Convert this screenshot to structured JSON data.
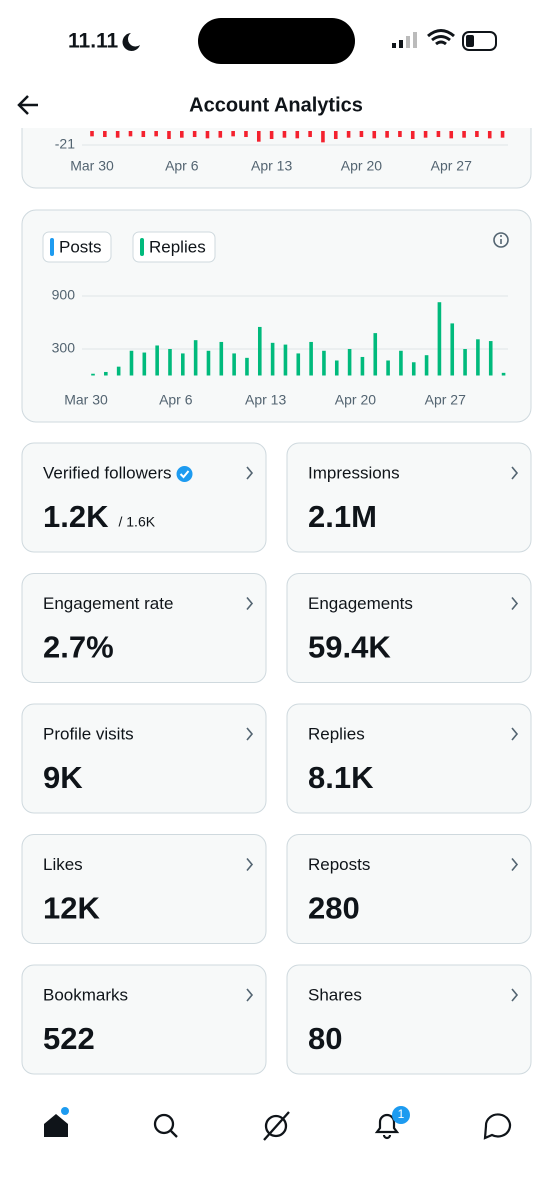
{
  "status": {
    "time": "11.11"
  },
  "header": {
    "title": "Account Analytics"
  },
  "chart_data": [
    {
      "type": "bar",
      "categories": [
        "Mar 30",
        null,
        null,
        null,
        null,
        null,
        null,
        "Apr 6",
        null,
        null,
        null,
        null,
        null,
        null,
        "Apr 13",
        null,
        null,
        null,
        null,
        null,
        null,
        "Apr 20",
        null,
        null,
        null,
        null,
        null,
        null,
        "Apr 27",
        null,
        null,
        null,
        null
      ],
      "series": [
        {
          "color": "#f4212e",
          "values": [
            -8,
            -9,
            -10,
            -8,
            -9,
            -8,
            -12,
            -10,
            -9,
            -11,
            -10,
            -8,
            -9,
            -16,
            -12,
            -10,
            -11,
            -9,
            -17,
            -12,
            -10,
            -9,
            -11,
            -10,
            -9,
            -12,
            -10,
            -9,
            -11,
            -10,
            -9,
            -11,
            -10
          ]
        }
      ],
      "ylim": [
        -28,
        0
      ],
      "yticks": [
        -21
      ],
      "grid": true
    },
    {
      "type": "bar",
      "categories": [
        "Mar 30",
        null,
        null,
        null,
        null,
        null,
        null,
        "Apr 6",
        null,
        null,
        null,
        null,
        null,
        null,
        "Apr 13",
        null,
        null,
        null,
        null,
        null,
        null,
        "Apr 20",
        null,
        null,
        null,
        null,
        null,
        null,
        "Apr 27",
        null,
        null,
        null,
        null
      ],
      "series": [
        {
          "name": "Posts",
          "color": "#1d9bf0",
          "values": [
            0,
            0,
            0,
            0,
            0,
            0,
            0,
            0,
            0,
            0,
            0,
            0,
            0,
            0,
            0,
            0,
            0,
            0,
            0,
            0,
            0,
            0,
            0,
            0,
            0,
            0,
            0,
            0,
            0,
            0,
            0,
            0,
            0
          ]
        },
        {
          "name": "Replies",
          "color": "#00ba7c",
          "values": [
            20,
            40,
            100,
            280,
            260,
            340,
            300,
            250,
            400,
            280,
            380,
            250,
            200,
            550,
            370,
            350,
            250,
            380,
            280,
            170,
            300,
            210,
            480,
            170,
            280,
            150,
            230,
            830,
            590,
            300,
            410,
            390,
            30
          ]
        }
      ],
      "ylim": [
        0,
        1000
      ],
      "yticks": [
        300,
        900
      ],
      "grid": true
    }
  ],
  "metrics": [
    {
      "label": "Verified followers",
      "value": "1.2K",
      "total": "/ 1.6K"
    },
    {
      "label": "Impressions",
      "value": "2.1M"
    },
    {
      "label": "Engagement rate",
      "value": "2.7%"
    },
    {
      "label": "Engagements",
      "value": "59.4K"
    },
    {
      "label": "Profile visits",
      "value": "9K"
    },
    {
      "label": "Replies",
      "value": "8.1K"
    },
    {
      "label": "Likes",
      "value": "12K"
    },
    {
      "label": "Reposts",
      "value": "280"
    },
    {
      "label": "Bookmarks",
      "value": "522"
    },
    {
      "label": "Shares",
      "value": "80"
    }
  ],
  "nav": {
    "badge": "1"
  }
}
